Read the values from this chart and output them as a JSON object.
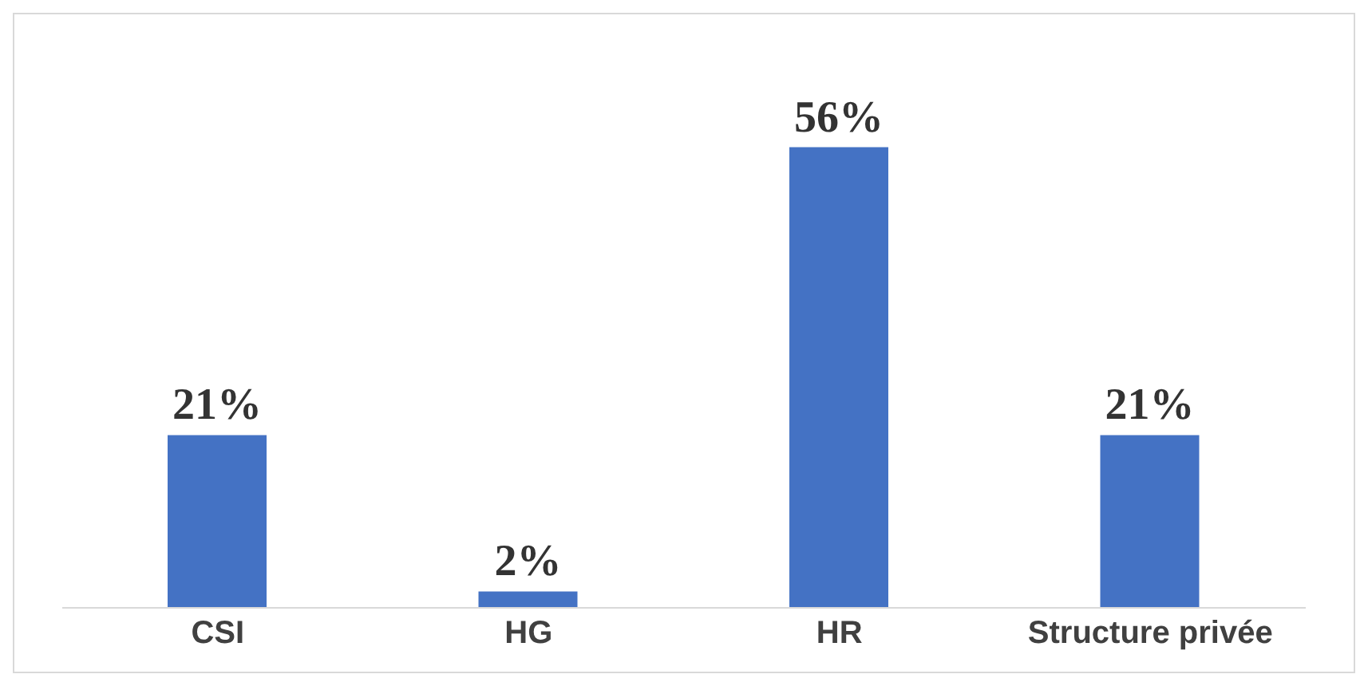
{
  "chart_data": {
    "type": "bar",
    "categories": [
      "CSI",
      "HG",
      "HR",
      "Structure privée"
    ],
    "values": [
      21,
      2,
      56,
      21
    ],
    "color": "#4472c4",
    "value_labels": [
      "21%",
      "2%",
      "56%",
      "21%"
    ]
  }
}
